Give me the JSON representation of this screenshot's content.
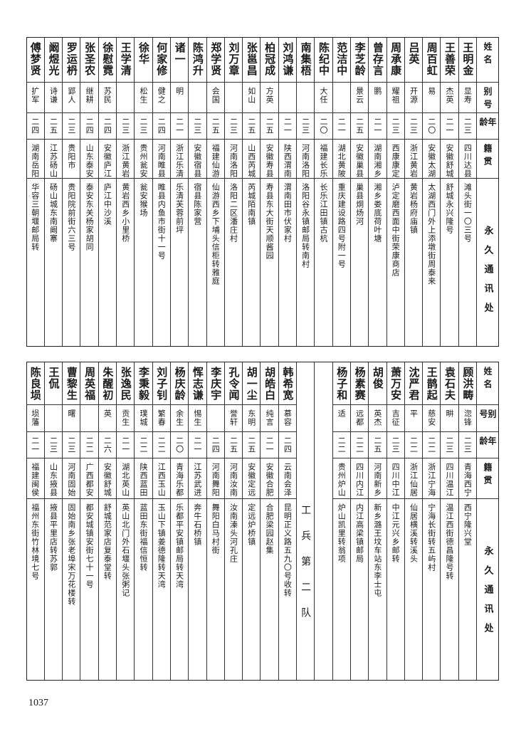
{
  "headers": {
    "name": "姓名",
    "alias": "别号",
    "age": "年龄",
    "origin": "籍贯",
    "address": "永久通讯处"
  },
  "tables": [
    {
      "columns": [
        {
          "name": "王明金",
          "alias": "显寿",
          "age": "二三",
          "origin": "四川达县",
          "address": "滩头街一〇三号"
        },
        {
          "name": "王善荣",
          "alias": "杰英",
          "age": "二一",
          "origin": "安徽舒城",
          "address": "舒城永兴隆号"
        },
        {
          "name": "周百虹",
          "alias": "易",
          "age": "二〇",
          "origin": "安徽太湖",
          "address": "太湖西门外上添墩街周泰来"
        },
        {
          "name": "吕英",
          "alias": "开源",
          "age": "二三",
          "origin": "浙江黄岩",
          "address": "黄岩杨府庙镇"
        },
        {
          "name": "周承康",
          "alias": "耀祖",
          "age": "二三",
          "origin": "西康康定",
          "address": "泸定磨西面中街荣康商店"
        },
        {
          "name": "曾存言",
          "alias": "鹏",
          "age": "二一",
          "origin": "湖南湘乡",
          "address": "湘乡娄底荷叶塘"
        },
        {
          "name": "李芝龄",
          "alias": "景云",
          "age": "二五",
          "origin": "安徽巢县",
          "address": "巢县烔炀河"
        },
        {
          "name": "范洁中",
          "alias": "",
          "age": "二一",
          "origin": "湖北黄陂",
          "address": "重庆建设路四号附一号"
        },
        {
          "name": "陈纪中",
          "alias": "大任",
          "age": "二〇",
          "origin": "福建长乐",
          "address": "长乐江田镇古杭"
        },
        {
          "name": "南集梧",
          "alias": "",
          "age": "二三",
          "origin": "河南洛阳",
          "address": "洛阳谷永镇邮局转南村"
        },
        {
          "name": "刘鸿谦",
          "alias": "",
          "age": "二一",
          "origin": "陕西渭南",
          "address": "渭南田市伏家村"
        },
        {
          "name": "柏冠成",
          "alias": "方英",
          "age": "二五",
          "origin": "安徽寿县",
          "address": "寿县东大街天顺酱园"
        },
        {
          "name": "张邕昌",
          "alias": "如山",
          "age": "二五",
          "origin": "山西芮城",
          "address": "芮城陌南镇"
        },
        {
          "name": "刘万章",
          "alias": "",
          "age": "二三",
          "origin": "河南洛阳",
          "address": "洛阳二区潘庄村"
        },
        {
          "name": "郑学贤",
          "alias": "会国",
          "age": "二五",
          "origin": "福建仙游",
          "address": "仙游西乡下埔头信柜转雅庭"
        },
        {
          "name": "陈鸿升",
          "alias": "",
          "age": "二三",
          "origin": "安徽宿县",
          "address": "宿县陈家营"
        },
        {
          "name": "诸一",
          "alias": "明",
          "age": "二一",
          "origin": "浙江乐清",
          "address": "乐清芙蓉前坪"
        },
        {
          "name": "何家修",
          "alias": "健之",
          "age": "二四",
          "origin": "河南睢县",
          "address": "睢县内鱼市街十一号"
        },
        {
          "name": "徐华",
          "alias": "松生",
          "age": "二三",
          "origin": "贵州瓮安",
          "address": "瓮安猴场"
        },
        {
          "name": "王学清",
          "alias": "",
          "age": "二三",
          "origin": "浙江黄岩",
          "address": "黄岩西乡小里桥"
        },
        {
          "name": "徐慰霓",
          "alias": "苏民",
          "age": "二四",
          "origin": "安徽庐江",
          "address": "庐江中沙溪"
        },
        {
          "name": "张圣农",
          "alias": "继耕",
          "age": "二四",
          "origin": "山东泰安",
          "address": "泰安东关杨家胡同"
        },
        {
          "name": "罗运枬",
          "alias": "郢人",
          "age": "二三",
          "origin": "贵阳市",
          "address": "贵阳院前街六三号"
        },
        {
          "name": "阚煜光",
          "alias": "诗谦",
          "age": "二五",
          "origin": "江苏砀山",
          "address": "砀山城东南阚寨"
        },
        {
          "name": "傅梦贤",
          "alias": "扩军",
          "age": "二四",
          "origin": "湖南岳阳",
          "address": "华容三朝堰邮局转"
        }
      ]
    },
    {
      "columns": [
        {
          "name": "顾洪畴",
          "alias": "淴锋",
          "age": "二三",
          "origin": "青海西宁",
          "address": "西宁隆兴堂"
        },
        {
          "name": "袁石夫",
          "alias": "畊",
          "age": "二三",
          "origin": "四川温江",
          "address": "温江西街德昌隆号转"
        },
        {
          "name": "王鹊起",
          "alias": "慈安",
          "age": "二二",
          "origin": "浙江宁海",
          "address": "宁海长街转五屿村"
        },
        {
          "name": "沈严君",
          "alias": "平",
          "age": "二二",
          "origin": "浙江仙居",
          "address": "仙居横溪转溪头"
        },
        {
          "name": "萧万安",
          "alias": "吉征",
          "age": "二三",
          "origin": "四川中江",
          "address": "中江元兴乡邮转"
        },
        {
          "name": "胡俊",
          "alias": "英杰",
          "age": "二五",
          "origin": "河南新乡",
          "address": "新乡潞王坟车站东李士屯"
        },
        {
          "name": "杨素赛",
          "alias": "远都",
          "age": "二二",
          "origin": "四川内江",
          "address": "内江高梁镇邮局"
        },
        {
          "name": "杨子和",
          "alias": "适",
          "age": "二二",
          "origin": "贵州炉山",
          "address": "炉山凯里转翁项"
        },
        {
          "blank": true
        },
        {
          "section": "工兵第二队"
        },
        {
          "name": "韩希宽",
          "alias": "慕容",
          "age": "二四",
          "origin": "云南会泽",
          "address": "昆明正义路五九〇号收转"
        },
        {
          "name": "胡皓白",
          "alias": "纯言",
          "age": "二一",
          "origin": "安徽合肥",
          "address": "合肥梁园赵集"
        },
        {
          "name": "胡一尘",
          "alias": "东明",
          "age": "二五",
          "origin": "安徽定远",
          "address": "定远炉桥镇"
        },
        {
          "name": "孔令闻",
          "alias": "誉轩",
          "age": "二五",
          "origin": "河南汝南",
          "address": "汝南溱头河孔庄"
        },
        {
          "name": "李庆宇",
          "alias": "",
          "age": "二四",
          "origin": "河南舞阳",
          "address": "舞阳白马村街"
        },
        {
          "name": "恽志谦",
          "alias": "惕生",
          "age": "二一",
          "origin": "江苏武进",
          "address": "奔牛石桥镇"
        },
        {
          "name": "杨庆龄",
          "alias": "余生",
          "age": "二〇",
          "origin": "青海乐都",
          "address": "乐都平安镇邮局转天湾"
        },
        {
          "name": "刘子钊",
          "alias": "繁春",
          "age": "二二",
          "origin": "江西玉山",
          "address": "玉山下镇姜德隆转天湾"
        },
        {
          "name": "李秉毅",
          "alias": "璞城",
          "age": "二二",
          "origin": "陕西蓝田",
          "address": "蓝田东街福信恒转"
        },
        {
          "name": "张逸民",
          "alias": "贡生",
          "age": "二一",
          "origin": "湖北英山",
          "address": "英山北门外石堰头张粥记"
        },
        {
          "name": "朱醒初",
          "alias": "英",
          "age": "二六",
          "origin": "安徽舒城",
          "address": "舒城范家店复泰堂转"
        },
        {
          "name": "周英福",
          "alias": "",
          "age": "二二",
          "origin": "广西都安",
          "address": "都安城镇安街七十一号"
        },
        {
          "name": "曹黎生",
          "alias": "曙",
          "age": "二三",
          "origin": "河南固始",
          "address": "固始南乡张老埠宋万花楼转"
        },
        {
          "name": "王侃",
          "alias": "",
          "age": "二三",
          "origin": "山东掖县",
          "address": "掖县平里店转苏郭"
        },
        {
          "name": "陈良埙",
          "alias": "埙藩",
          "age": "二一",
          "origin": "福建闽侯",
          "address": "福州东街竹林境七号"
        }
      ]
    }
  ],
  "page_number": "1037"
}
